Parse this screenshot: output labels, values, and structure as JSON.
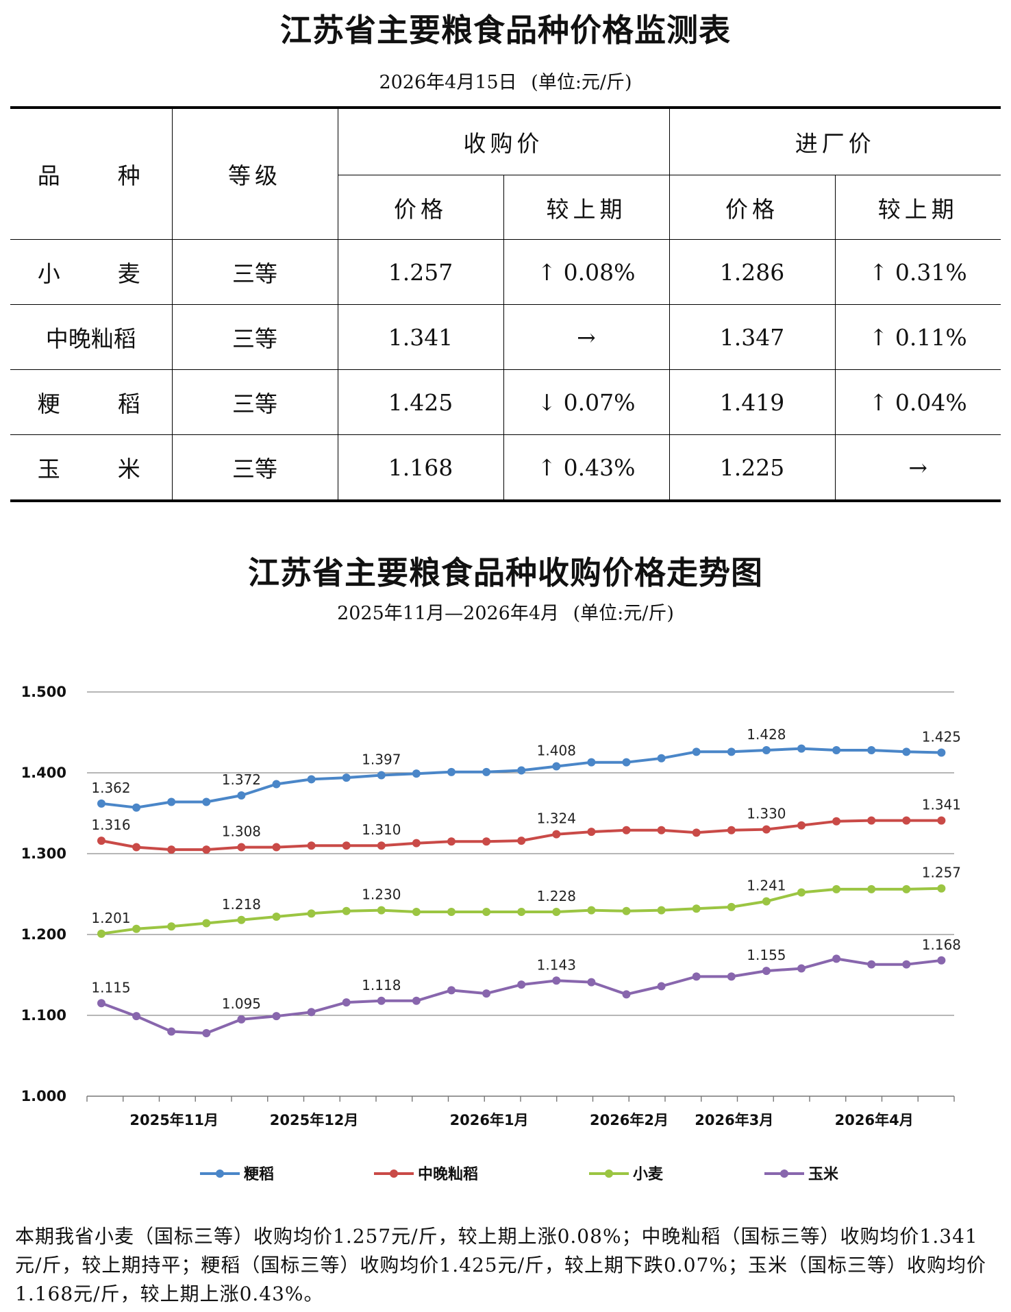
{
  "table": {
    "title": "江苏省主要粮食品种价格监测表",
    "date": "2026年4月15日",
    "unit": "(单位:元/斤)",
    "headers": {
      "variety": "品　　种",
      "grade": "等级",
      "purchase": "收购价",
      "factory": "进厂价",
      "price": "价格",
      "change": "较上期"
    },
    "rows": [
      {
        "name": "小　　麦",
        "grade": "三等",
        "purchase_price": "1.257",
        "purchase_change": "↑ 0.08%",
        "factory_price": "1.286",
        "factory_change": "↑ 0.31%"
      },
      {
        "name": "中晚籼稻",
        "grade": "三等",
        "purchase_price": "1.341",
        "purchase_change": "→",
        "factory_price": "1.347",
        "factory_change": "↑ 0.11%"
      },
      {
        "name": "粳　　稻",
        "grade": "三等",
        "purchase_price": "1.425",
        "purchase_change": "↓ 0.07%",
        "factory_price": "1.419",
        "factory_change": "↑ 0.04%"
      },
      {
        "name": "玉　　米",
        "grade": "三等",
        "purchase_price": "1.168",
        "purchase_change": "↑ 0.43%",
        "factory_price": "1.225",
        "factory_change": "→"
      }
    ]
  },
  "chart_header": {
    "title": "江苏省主要粮食品种收购价格走势图",
    "range": "2025年11月—2026年4月",
    "unit": "(单位:元/斤)"
  },
  "chart_data": {
    "type": "line",
    "ylim": [
      1.0,
      1.5
    ],
    "yticks": [
      "1.000",
      "1.100",
      "1.200",
      "1.300",
      "1.400",
      "1.500"
    ],
    "x_count": 25,
    "month_labels": [
      {
        "label": "2025年11月",
        "at": 2
      },
      {
        "label": "2025年12月",
        "at": 6
      },
      {
        "label": "2026年1月",
        "at": 11
      },
      {
        "label": "2026年2月",
        "at": 15
      },
      {
        "label": "2026年3月",
        "at": 18
      },
      {
        "label": "2026年4月",
        "at": 22
      }
    ],
    "grid": true,
    "legend_position": "bottom",
    "series": [
      {
        "name": "粳稻",
        "color": "#4a86c8",
        "values": [
          1.362,
          1.357,
          1.364,
          1.364,
          1.372,
          1.386,
          1.392,
          1.394,
          1.397,
          1.399,
          1.401,
          1.401,
          1.403,
          1.408,
          1.413,
          1.413,
          1.418,
          1.426,
          1.426,
          1.428,
          1.43,
          1.428,
          1.428,
          1.426,
          1.425
        ],
        "labels": {
          "0": "1.362",
          "4": "1.372",
          "8": "1.397",
          "13": "1.408",
          "19": "1.428",
          "24": "1.425"
        }
      },
      {
        "name": "中晚籼稻",
        "color": "#c94a47",
        "values": [
          1.316,
          1.308,
          1.305,
          1.305,
          1.308,
          1.308,
          1.31,
          1.31,
          1.31,
          1.313,
          1.315,
          1.315,
          1.316,
          1.324,
          1.327,
          1.329,
          1.329,
          1.326,
          1.329,
          1.33,
          1.335,
          1.34,
          1.341,
          1.341,
          1.341
        ],
        "labels": {
          "0": "1.316",
          "4": "1.308",
          "8": "1.310",
          "13": "1.324",
          "19": "1.330",
          "24": "1.341"
        }
      },
      {
        "name": "小麦",
        "color": "#9bc542",
        "values": [
          1.201,
          1.207,
          1.21,
          1.214,
          1.218,
          1.222,
          1.226,
          1.229,
          1.23,
          1.228,
          1.228,
          1.228,
          1.228,
          1.228,
          1.23,
          1.229,
          1.23,
          1.232,
          1.234,
          1.241,
          1.252,
          1.256,
          1.256,
          1.256,
          1.257
        ],
        "labels": {
          "0": "1.201",
          "4": "1.218",
          "8": "1.230",
          "13": "1.228",
          "19": "1.241",
          "24": "1.257"
        }
      },
      {
        "name": "玉米",
        "color": "#8866ad",
        "values": [
          1.115,
          1.099,
          1.08,
          1.078,
          1.095,
          1.099,
          1.104,
          1.116,
          1.118,
          1.118,
          1.131,
          1.127,
          1.138,
          1.143,
          1.141,
          1.126,
          1.136,
          1.148,
          1.148,
          1.155,
          1.158,
          1.17,
          1.163,
          1.163,
          1.168
        ],
        "labels": {
          "0": "1.115",
          "4": "1.095",
          "8": "1.118",
          "13": "1.143",
          "19": "1.155",
          "24": "1.168"
        }
      }
    ]
  },
  "summary": "本期我省小麦（国标三等）收购均价1.257元/斤，较上期上涨0.08%；中晚籼稻（国标三等）收购均价1.341元/斤，较上期持平；粳稻（国标三等）收购均价1.425元/斤，较上期下跌0.07%；玉米（国标三等）收购均价1.168元/斤，较上期上涨0.43%。"
}
